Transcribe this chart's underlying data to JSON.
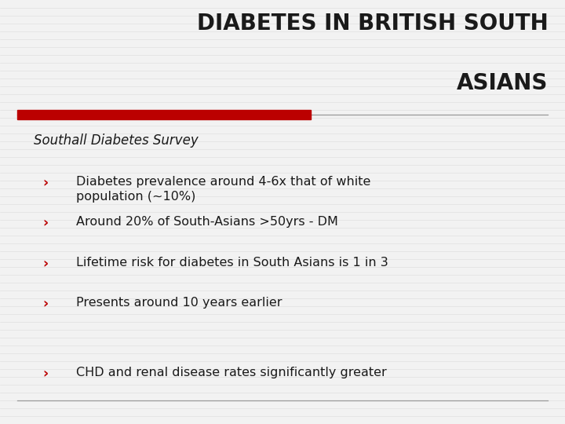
{
  "title_line1": "DIABETES IN BRITISH SOUTH",
  "title_line2": "ASIANS",
  "subtitle": "Southall Diabetes Survey",
  "bullets": [
    "Diabetes prevalence around 4-6x that of white\npopulation (~10%)",
    "Around 20% of South-Asians >50yrs - DM",
    "Lifetime risk for diabetes in South Asians is 1 in 3",
    "Presents around 10 years earlier"
  ],
  "extra_bullet": "CHD and renal disease rates significantly greater",
  "bg_color": "#f2f2f2",
  "stripe_color": "#e0e0e0",
  "title_color": "#1a1a1a",
  "text_color": "#1a1a1a",
  "red_bar_color": "#bb0000",
  "gray_line_color": "#999999",
  "bullet_marker_color": "#bb0000",
  "title_fontsize": 20,
  "subtitle_fontsize": 12,
  "bullet_fontsize": 11.5,
  "stripe_count": 54,
  "stripe_linewidth": 0.5
}
